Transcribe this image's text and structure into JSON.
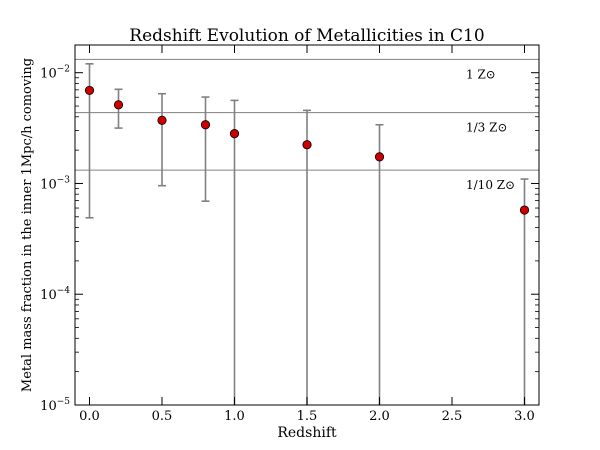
{
  "chart_data": {
    "type": "scatter",
    "title": "Redshift Evolution of Metallicities in C10",
    "xlabel": "Redshift",
    "ylabel": "Metal mass fraction in the inner 1Mpc/h comoving",
    "xlim": [
      -0.1,
      3.1
    ],
    "ylim_log10": [
      -5,
      -1.75
    ],
    "y_scale": "log",
    "x_ticks": [
      {
        "value": 0.0,
        "label": "0.0"
      },
      {
        "value": 0.5,
        "label": "0.5"
      },
      {
        "value": 1.0,
        "label": "1.0"
      },
      {
        "value": 1.5,
        "label": "1.5"
      },
      {
        "value": 2.0,
        "label": "2.0"
      },
      {
        "value": 2.5,
        "label": "2.5"
      },
      {
        "value": 3.0,
        "label": "3.0"
      }
    ],
    "y_ticks": [
      {
        "log10": -2,
        "base": "10",
        "exp": "−2"
      },
      {
        "log10": -3,
        "base": "10",
        "exp": "−3"
      },
      {
        "log10": -4,
        "base": "10",
        "exp": "−4"
      },
      {
        "log10": -5,
        "base": "10",
        "exp": "−5"
      }
    ],
    "reference_lines": [
      {
        "label": "1 Z⊙",
        "log10": -1.88
      },
      {
        "label": "1/3 Z⊙",
        "log10": -2.36
      },
      {
        "label": "1/10 Z⊙",
        "log10": -2.88
      }
    ],
    "series": [
      {
        "name": "C10",
        "marker_color": "#cc0000",
        "errorbar_color": "#808080",
        "points": [
          {
            "x": 0.0,
            "log10": -2.16,
            "err_lo": -3.31,
            "err_hi": -1.92
          },
          {
            "x": 0.2,
            "log10": -2.29,
            "err_lo": -2.5,
            "err_hi": -2.15
          },
          {
            "x": 0.5,
            "log10": -2.43,
            "err_lo": -3.02,
            "err_hi": -2.19
          },
          {
            "x": 0.8,
            "log10": -2.47,
            "err_lo": -3.16,
            "err_hi": -2.22
          },
          {
            "x": 1.0,
            "log10": -2.55,
            "err_lo": -5.0,
            "err_hi": -2.25
          },
          {
            "x": 1.5,
            "log10": -2.65,
            "err_lo": -5.0,
            "err_hi": -2.34
          },
          {
            "x": 2.0,
            "log10": -2.76,
            "err_lo": -5.0,
            "err_hi": -2.47
          },
          {
            "x": 3.0,
            "log10": -3.24,
            "err_lo": -5.0,
            "err_hi": -2.96
          }
        ]
      }
    ]
  }
}
